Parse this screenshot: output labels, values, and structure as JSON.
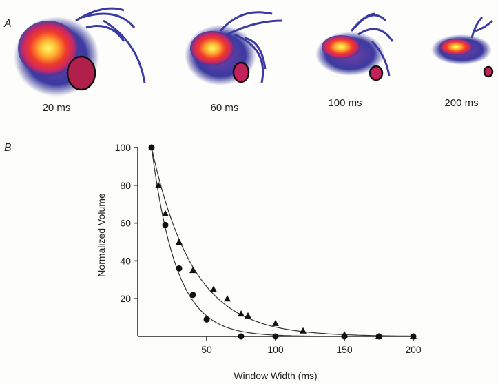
{
  "panels": {
    "a_label": "A",
    "b_label": "B"
  },
  "images": [
    {
      "caption": "20 ms"
    },
    {
      "caption": "60 ms"
    },
    {
      "caption": "100 ms"
    },
    {
      "caption": "200 ms"
    }
  ],
  "chart_data": {
    "type": "scatter",
    "xlabel": "Window Width (ms)",
    "ylabel": "Normalized Volume",
    "xlim": [
      0,
      200
    ],
    "ylim": [
      0,
      100
    ],
    "xticks": [
      "50",
      "100",
      "150",
      "200"
    ],
    "yticks": [
      "20",
      "40",
      "60",
      "80",
      "100"
    ],
    "series": [
      {
        "marker": "triangle",
        "points": [
          [
            10,
            100
          ],
          [
            15,
            80
          ],
          [
            20,
            65
          ],
          [
            30,
            50
          ],
          [
            40,
            35
          ],
          [
            55,
            25
          ],
          [
            65,
            20
          ],
          [
            75,
            12
          ],
          [
            80,
            11
          ],
          [
            100,
            7
          ],
          [
            120,
            3
          ],
          [
            150,
            1
          ],
          [
            175,
            0
          ],
          [
            200,
            0
          ]
        ]
      },
      {
        "marker": "circle",
        "points": [
          [
            10,
            100
          ],
          [
            20,
            59
          ],
          [
            30,
            36
          ],
          [
            40,
            22
          ],
          [
            50,
            9
          ],
          [
            75,
            0
          ],
          [
            100,
            0
          ],
          [
            150,
            0
          ],
          [
            175,
            0
          ],
          [
            200,
            0
          ]
        ]
      }
    ]
  }
}
